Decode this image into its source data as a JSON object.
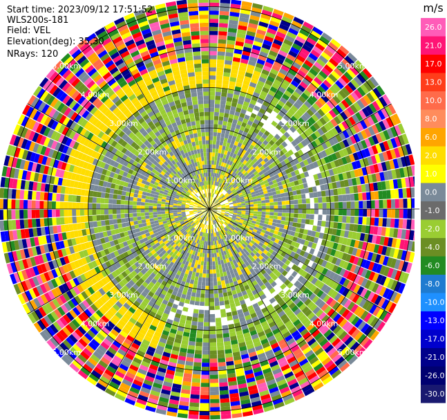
{
  "info": {
    "start_time": "Start time: 2023/09/12 17:51:52",
    "site": "WLS200s-181",
    "field": "Field: VEL",
    "elevation": "Elevation(deg): 35.30",
    "nrays": "NRays: 120"
  },
  "chart_data": {
    "type": "heatmap",
    "subtype": "polar-ppi",
    "nrays": 120,
    "ring_labels": [
      "1.00km",
      "2.00km",
      "3.00km",
      "4.00km",
      "5.00km"
    ],
    "range_max_km": 5.2,
    "colorbar": {
      "unit": "m/s",
      "ticks": [
        "26.0",
        "21.0",
        "17.0",
        "13.0",
        "10.0",
        "8.0",
        "6.0",
        "2.0",
        "1.0",
        "0.0",
        "-1.0",
        "-2.0",
        "-4.0",
        "-6.0",
        "-8.0",
        "-10.0",
        "-13.0",
        "-17.0",
        "-21.0",
        "-26.0",
        "-30.0"
      ],
      "colors": [
        "#ff5cb8",
        "#ff1475",
        "#ff0000",
        "#ff3d1a",
        "#ff6b4a",
        "#ff8c5c",
        "#ffa500",
        "#ffdd00",
        "#ffff00",
        "#7a8a99",
        "#6b6b6b",
        "#9acd32",
        "#6b8e23",
        "#228b22",
        "#1e7bd0",
        "#1e90ff",
        "#0000ff",
        "#0000cd",
        "#00008b",
        "#000070",
        "#191970"
      ]
    },
    "zones": [
      {
        "from_km": 0.0,
        "to_km": 0.6,
        "palette": [
          "#ffdd00",
          "#ffff00",
          "#9acd32",
          "#ffdd00",
          "#7a8a99"
        ]
      },
      {
        "from_km": 0.6,
        "to_km": 2.0,
        "palette": [
          "#7a8a99",
          "#7a8a99",
          "#7a8a99",
          "#9acd32",
          "#9acd32",
          "#ffdd00"
        ]
      },
      {
        "from_km": 2.0,
        "to_km": 3.0,
        "palette": [
          "#7a8a99",
          "#9acd32",
          "#9acd32",
          "#6b8e23",
          "#7a8a99"
        ]
      },
      {
        "from_km": 3.0,
        "to_km": 3.7,
        "palette": [
          "#9acd32",
          "#6b8e23",
          "#7a8a99",
          "#228b22",
          "#9acd32"
        ]
      },
      {
        "from_km": 3.7,
        "to_km": 5.2,
        "palette": [
          "#ff1475",
          "#0000ff",
          "#ffff00",
          "#9acd32",
          "#ff5cb8",
          "#00008b",
          "#228b22",
          "#ff6b4a",
          "#7a8a99",
          "#ffa500",
          "#ff0000",
          "#6b8e23"
        ]
      }
    ],
    "yellow_arc": {
      "from_km": 3.0,
      "to_km": 3.7,
      "sector_from_deg": 200,
      "sector_to_deg": 20,
      "color": "#ffdd00"
    }
  }
}
